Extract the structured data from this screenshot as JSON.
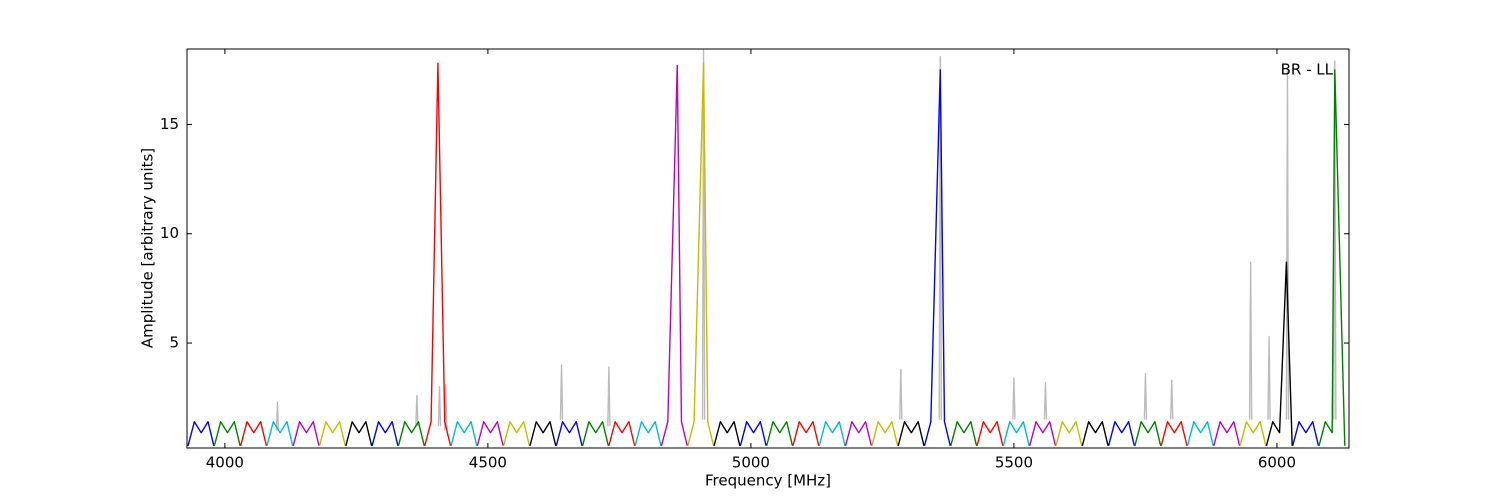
{
  "chart_data": {
    "type": "line",
    "xlabel": "Frequency [MHz]",
    "ylabel": "Amplitude [arbitrary units]",
    "annotation": "BR - LL",
    "xlim": [
      3928,
      6137
    ],
    "xticks": [
      4000,
      4500,
      5000,
      5500,
      6000
    ],
    "ylim": [
      0.2,
      18.45
    ],
    "yticks": [
      5,
      10,
      15
    ],
    "series": [
      {
        "color": "#bbbbbb",
        "x": [
          4098,
          4100,
          4102,
          null,
          4363,
          4365,
          4367,
          null,
          4406,
          4408,
          4410,
          null,
          4418,
          4420,
          4422,
          null,
          4638,
          4640,
          4642,
          null,
          4728,
          4730,
          4732,
          null,
          4908,
          4910,
          4912,
          null,
          5283,
          5285,
          5287,
          null,
          5358,
          5360,
          5362,
          null,
          5498,
          5500,
          5502,
          null,
          5558,
          5560,
          5562,
          null,
          5748,
          5750,
          5752,
          null,
          5798,
          5800,
          5802,
          null,
          5948,
          5950,
          5952,
          null,
          5983,
          5985,
          5987,
          null,
          6018,
          6020,
          6022,
          null,
          6108,
          6110,
          6112
        ],
        "values": [
          1.0,
          2.3,
          1.0,
          null,
          1.2,
          2.6,
          1.2,
          null,
          1.2,
          3.0,
          1.2,
          null,
          1.0,
          3.1,
          1.0,
          null,
          1.5,
          4.0,
          1.5,
          null,
          1.2,
          3.9,
          1.2,
          null,
          1.5,
          18.4,
          1.5,
          null,
          1.5,
          3.8,
          1.5,
          null,
          1.5,
          18.1,
          1.5,
          null,
          1.5,
          3.4,
          1.5,
          null,
          1.5,
          3.2,
          1.5,
          null,
          1.5,
          3.6,
          1.5,
          null,
          1.5,
          3.3,
          1.5,
          null,
          1.5,
          8.7,
          1.5,
          null,
          1.5,
          5.3,
          1.5,
          null,
          1.5,
          17.5,
          1.5,
          null,
          1.5,
          17.9,
          1.5
        ]
      },
      {
        "color": "#0000ff",
        "x": [
          3930,
          3942,
          3955,
          3968,
          3979,
          null,
          4280,
          4292,
          4305,
          4318,
          4329,
          null,
          4630,
          4642,
          4655,
          4668,
          4679,
          null,
          4980,
          4992,
          5005,
          5018,
          5029,
          null,
          5330,
          5342,
          5360,
          5368,
          5379,
          null,
          5680,
          5692,
          5705,
          5718,
          5729,
          null,
          6030,
          6042,
          6055,
          6068,
          6079
        ],
        "values": [
          0.3,
          1.4,
          0.9,
          1.4,
          0.3,
          null,
          0.3,
          1.4,
          0.9,
          1.4,
          0.3,
          null,
          0.3,
          1.4,
          0.9,
          1.4,
          0.3,
          null,
          0.3,
          1.4,
          0.9,
          1.4,
          0.3,
          null,
          0.3,
          1.4,
          17.5,
          1.4,
          0.3,
          null,
          0.3,
          1.4,
          0.9,
          1.4,
          0.3,
          null,
          0.3,
          1.4,
          0.9,
          1.4,
          0.3
        ]
      },
      {
        "color": "#008000",
        "x": [
          3980,
          3992,
          4005,
          4018,
          4029,
          null,
          4330,
          4342,
          4355,
          4368,
          4379,
          null,
          4680,
          4692,
          4705,
          4718,
          4729,
          null,
          5030,
          5042,
          5055,
          5068,
          5079,
          null,
          5380,
          5392,
          5405,
          5418,
          5429,
          null,
          5730,
          5742,
          5755,
          5768,
          5779,
          null,
          6080,
          6092,
          6105,
          6110,
          6129
        ],
        "values": [
          0.3,
          1.4,
          0.9,
          1.4,
          0.3,
          null,
          0.3,
          1.4,
          0.9,
          1.4,
          0.3,
          null,
          0.3,
          1.4,
          0.9,
          1.4,
          0.3,
          null,
          0.3,
          1.4,
          0.9,
          1.4,
          0.3,
          null,
          0.3,
          1.4,
          0.9,
          1.4,
          0.3,
          null,
          0.3,
          1.4,
          0.9,
          1.4,
          0.3,
          null,
          0.3,
          1.4,
          0.9,
          17.5,
          0.3
        ]
      },
      {
        "color": "#ff0000",
        "x": [
          4030,
          4042,
          4055,
          4068,
          4079,
          null,
          4380,
          4392,
          4405,
          4418,
          4429,
          null,
          4730,
          4742,
          4755,
          4768,
          4779,
          null,
          5080,
          5092,
          5105,
          5118,
          5129,
          null,
          5430,
          5442,
          5455,
          5468,
          5479,
          null,
          5780,
          5792,
          5805,
          5818,
          5829
        ],
        "values": [
          0.3,
          1.4,
          0.9,
          1.4,
          0.3,
          null,
          0.3,
          1.4,
          17.8,
          1.4,
          0.3,
          null,
          0.3,
          1.4,
          0.9,
          1.4,
          0.3,
          null,
          0.3,
          1.4,
          0.9,
          1.4,
          0.3,
          null,
          0.3,
          1.4,
          0.9,
          1.4,
          0.3,
          null,
          0.3,
          1.4,
          0.9,
          1.4,
          0.3
        ]
      },
      {
        "color": "#00bfbf",
        "x": [
          4080,
          4092,
          4105,
          4118,
          4129,
          null,
          4430,
          4442,
          4455,
          4468,
          4479,
          null,
          4780,
          4792,
          4805,
          4818,
          4829,
          null,
          5130,
          5142,
          5155,
          5168,
          5179,
          null,
          5480,
          5492,
          5505,
          5518,
          5529,
          null,
          5830,
          5842,
          5855,
          5868,
          5879
        ],
        "values": [
          0.3,
          1.4,
          0.9,
          1.4,
          0.3,
          null,
          0.3,
          1.4,
          0.9,
          1.4,
          0.3,
          null,
          0.3,
          1.4,
          0.9,
          1.4,
          0.3,
          null,
          0.3,
          1.4,
          0.9,
          1.4,
          0.3,
          null,
          0.3,
          1.4,
          0.9,
          1.4,
          0.3,
          null,
          0.3,
          1.4,
          0.9,
          1.4,
          0.3
        ]
      },
      {
        "color": "#bf00bf",
        "x": [
          4130,
          4142,
          4155,
          4168,
          4179,
          null,
          4480,
          4492,
          4505,
          4518,
          4529,
          null,
          4830,
          4842,
          4860,
          4868,
          4879,
          null,
          5180,
          5192,
          5205,
          5218,
          5229,
          null,
          5530,
          5542,
          5555,
          5568,
          5579,
          null,
          5880,
          5892,
          5905,
          5918,
          5929
        ],
        "values": [
          0.3,
          1.4,
          0.9,
          1.4,
          0.3,
          null,
          0.3,
          1.4,
          0.9,
          1.4,
          0.3,
          null,
          0.3,
          1.4,
          17.7,
          1.4,
          0.3,
          null,
          0.3,
          1.4,
          0.9,
          1.4,
          0.3,
          null,
          0.3,
          1.4,
          0.9,
          1.4,
          0.3,
          null,
          0.3,
          1.4,
          0.9,
          1.4,
          0.3
        ]
      },
      {
        "color": "#bfbf00",
        "x": [
          4180,
          4192,
          4205,
          4218,
          4229,
          null,
          4530,
          4542,
          4555,
          4568,
          4579,
          null,
          4880,
          4892,
          4910,
          4918,
          4929,
          null,
          5230,
          5242,
          5255,
          5268,
          5279,
          null,
          5580,
          5592,
          5605,
          5618,
          5629,
          null,
          5930,
          5942,
          5955,
          5968,
          5979
        ],
        "values": [
          0.3,
          1.4,
          0.9,
          1.4,
          0.3,
          null,
          0.3,
          1.4,
          0.9,
          1.4,
          0.3,
          null,
          0.3,
          1.4,
          17.8,
          1.4,
          0.3,
          null,
          0.3,
          1.4,
          0.9,
          1.4,
          0.3,
          null,
          0.3,
          1.4,
          0.9,
          1.4,
          0.3,
          null,
          0.3,
          1.4,
          0.9,
          1.4,
          0.3
        ]
      },
      {
        "color": "#000000",
        "x": [
          4230,
          4242,
          4255,
          4268,
          4279,
          null,
          4580,
          4592,
          4605,
          4618,
          4629,
          null,
          4930,
          4942,
          4955,
          4968,
          4979,
          null,
          5280,
          5292,
          5305,
          5318,
          5329,
          null,
          5630,
          5642,
          5655,
          5668,
          5679,
          null,
          5980,
          5992,
          6005,
          6018,
          6029
        ],
        "values": [
          0.3,
          1.4,
          0.9,
          1.4,
          0.3,
          null,
          0.3,
          1.4,
          0.9,
          1.4,
          0.3,
          null,
          0.3,
          1.4,
          0.9,
          1.4,
          0.3,
          null,
          0.3,
          1.4,
          0.9,
          1.4,
          0.3,
          null,
          0.3,
          1.4,
          0.9,
          1.4,
          0.3,
          null,
          0.3,
          1.4,
          0.9,
          8.7,
          0.3
        ]
      }
    ]
  }
}
